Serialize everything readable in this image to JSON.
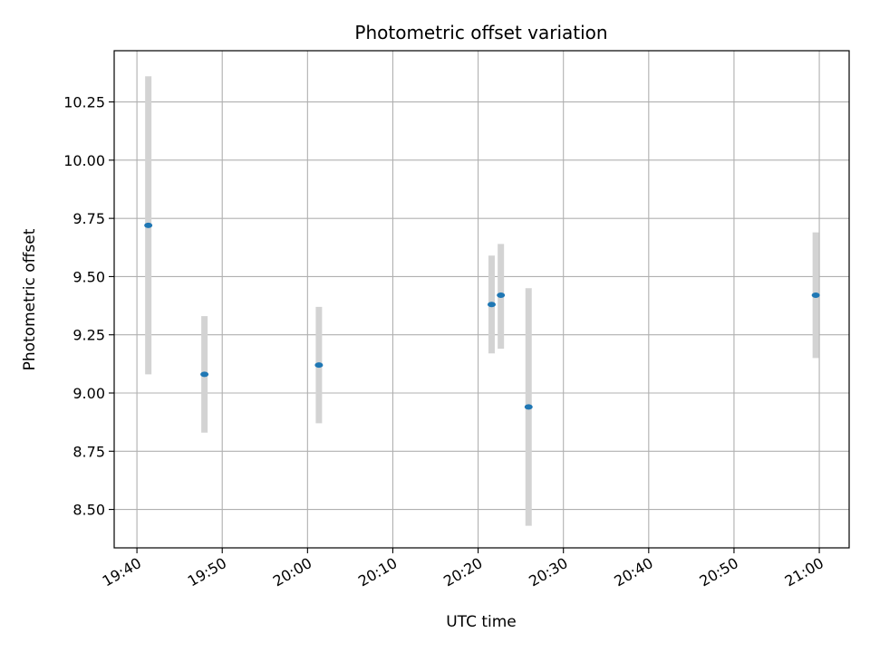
{
  "chart_data": {
    "type": "scatter",
    "title": "Photometric offset variation",
    "xlabel": "UTC time",
    "ylabel": "Photometric offset",
    "grid": true,
    "x_ticks": [
      "19:40",
      "19:50",
      "20:00",
      "20:10",
      "20:20",
      "20:30",
      "20:40",
      "20:50",
      "21:00"
    ],
    "y_ticks": [
      "8.50",
      "8.75",
      "9.00",
      "9.25",
      "9.50",
      "9.75",
      "10.00",
      "10.25"
    ],
    "x_range": [
      "19:37:20",
      "21:03:30"
    ],
    "y_range": [
      8.335,
      10.47
    ],
    "points": [
      {
        "time": "19:41:20",
        "offset": 9.72,
        "low": 9.08,
        "high": 10.36
      },
      {
        "time": "19:47:55",
        "offset": 9.08,
        "low": 8.83,
        "high": 9.33
      },
      {
        "time": "20:01:20",
        "offset": 9.12,
        "low": 8.87,
        "high": 9.37
      },
      {
        "time": "20:21:35",
        "offset": 9.38,
        "low": 9.17,
        "high": 9.59
      },
      {
        "time": "20:22:40",
        "offset": 9.42,
        "low": 9.19,
        "high": 9.64
      },
      {
        "time": "20:25:55",
        "offset": 8.94,
        "low": 8.43,
        "high": 9.45
      },
      {
        "time": "20:59:35",
        "offset": 9.42,
        "low": 9.15,
        "high": 9.69
      }
    ],
    "colors": {
      "point": "#1f77b4",
      "errorbar": "#d3d3d3",
      "grid": "#b0b0b0",
      "axis": "#000000"
    }
  }
}
